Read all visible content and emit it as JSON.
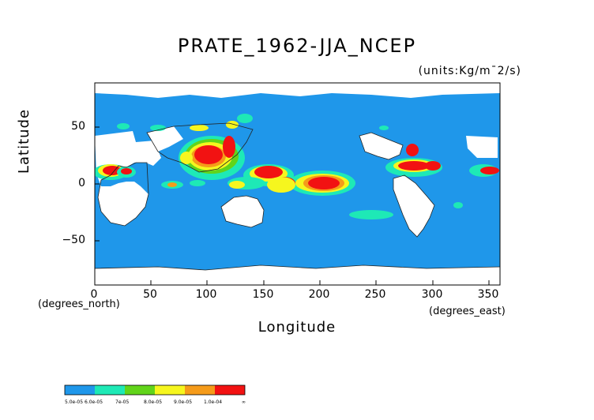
{
  "title": "PRATE_1962-JJA_NCEP",
  "units": "(units:Kg/m¯2/s)",
  "y_axis": {
    "title": "Latitude",
    "unit_note": "(degrees_north)",
    "ticks": [
      "50",
      "0",
      "−50"
    ]
  },
  "x_axis": {
    "title": "Longitude",
    "unit_note": "(degrees_east)",
    "ticks": [
      "0",
      "50",
      "100",
      "150",
      "200",
      "250",
      "300",
      "350"
    ]
  },
  "map_extent": {
    "lon": [
      0,
      360
    ],
    "lat": [
      -90,
      90
    ]
  },
  "colors": {
    "ocean_base": "#1f97ea",
    "land_missing": "#ffffff",
    "levels": [
      "#1f97ea",
      "#1ee9b6",
      "#61d41a",
      "#f6f61e",
      "#f59b1a",
      "#f21212"
    ]
  },
  "colorbar": {
    "labels": [
      "5.0e-05",
      "6.0e-05",
      "7e-05",
      "8.0e-05",
      "9.0e-05",
      "1.0e-04",
      "∞"
    ]
  }
}
